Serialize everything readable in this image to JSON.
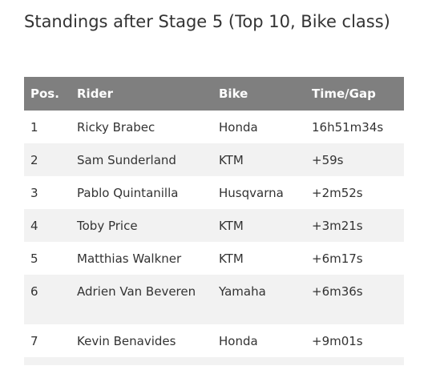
{
  "heading": "Standings after Stage 5 (Top 10, Bike class)",
  "table": {
    "columns": [
      "Pos.",
      "Rider",
      "Bike",
      "Time/Gap"
    ],
    "rows": [
      {
        "pos": "1",
        "rider": "Ricky Brabec",
        "bike": "Honda",
        "time": "16h51m34s"
      },
      {
        "pos": "2",
        "rider": "Sam Sunderland",
        "bike": "KTM",
        "time": "+59s"
      },
      {
        "pos": "3",
        "rider": "Pablo Quintanilla",
        "bike": "Husqvarna",
        "time": "+2m52s"
      },
      {
        "pos": "4",
        "rider": "Toby Price",
        "bike": "KTM",
        "time": "+3m21s"
      },
      {
        "pos": "5",
        "rider": "Matthias Walkner",
        "bike": "KTM",
        "time": "+6m17s"
      },
      {
        "pos": "6",
        "rider": "Adrien Van Beveren",
        "bike": "Yamaha",
        "time": "+6m36s"
      },
      {
        "pos": "7",
        "rider": "Kevin Benavides",
        "bike": "Honda",
        "time": "+9m01s"
      }
    ]
  },
  "colors": {
    "header_bg": "#7f7f7f",
    "alt_row_bg": "#f2f2f2",
    "text": "#333333"
  }
}
